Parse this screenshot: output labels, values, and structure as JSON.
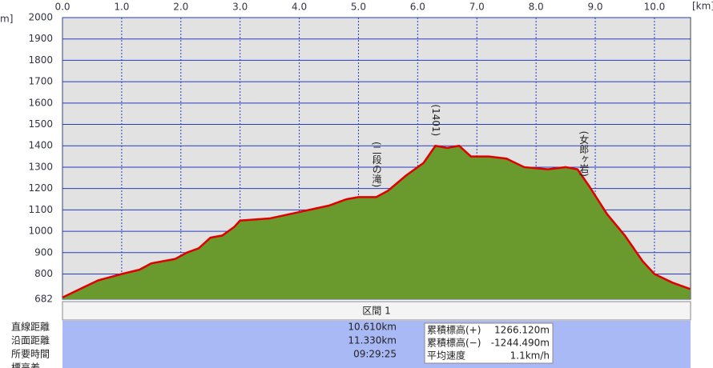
{
  "chart_data": {
    "type": "area",
    "x_unit": "[km]",
    "y_unit": "m]",
    "x": [
      0.0,
      0.3,
      0.6,
      1.0,
      1.3,
      1.5,
      1.9,
      2.1,
      2.3,
      2.5,
      2.7,
      2.9,
      3.0,
      3.5,
      4.0,
      4.5,
      4.8,
      5.0,
      5.3,
      5.5,
      5.8,
      6.1,
      6.3,
      6.5,
      6.7,
      6.9,
      7.2,
      7.5,
      7.8,
      8.2,
      8.5,
      8.7,
      8.9,
      9.2,
      9.5,
      9.8,
      10.0,
      10.3,
      10.6
    ],
    "values": [
      690,
      730,
      770,
      800,
      820,
      850,
      870,
      900,
      920,
      970,
      980,
      1020,
      1050,
      1060,
      1090,
      1120,
      1150,
      1160,
      1160,
      1190,
      1260,
      1320,
      1400,
      1390,
      1400,
      1350,
      1350,
      1340,
      1300,
      1290,
      1300,
      1290,
      1210,
      1080,
      980,
      860,
      800,
      760,
      730
    ],
    "color": "#e00000",
    "fill": "#6a9a2e",
    "xlim": [
      0,
      10.61
    ],
    "ylim": [
      682,
      2000
    ],
    "xticks": [
      {
        "value": 0,
        "label": "0.0"
      },
      {
        "value": 1,
        "label": "1.0"
      },
      {
        "value": 2,
        "label": "2.0"
      },
      {
        "value": 3,
        "label": "3.0"
      },
      {
        "value": 4,
        "label": "4.0"
      },
      {
        "value": 5,
        "label": "5.0"
      },
      {
        "value": 6,
        "label": "6.0"
      },
      {
        "value": 7,
        "label": "7.0"
      },
      {
        "value": 8,
        "label": "8.0"
      },
      {
        "value": 9,
        "label": "9.0"
      },
      {
        "value": 10,
        "label": "10.0"
      }
    ],
    "yticks": [
      682,
      800,
      900,
      1000,
      1100,
      1200,
      1300,
      1400,
      1500,
      1600,
      1700,
      1800,
      1900,
      2000
    ],
    "grid": true,
    "annotations": [
      {
        "text": "(二段の滝)",
        "x": 5.3
      },
      {
        "text": "(1401)",
        "x": 6.3
      },
      {
        "text": "(女郎ヶ岩)",
        "x": 8.8
      }
    ]
  },
  "summary": {
    "section": "区間 1",
    "rows": [
      [
        "直線距離",
        "10.610km"
      ],
      [
        "沿面距離",
        "11.330km"
      ],
      [
        "所要時間",
        "09:29:25"
      ],
      [
        "標高差",
        ""
      ]
    ],
    "stats": [
      [
        "累積標高(+)",
        "1266.120m"
      ],
      [
        "累積標高(−)",
        "-1244.490m"
      ],
      [
        "平均速度",
        "1.1km/h"
      ]
    ]
  }
}
